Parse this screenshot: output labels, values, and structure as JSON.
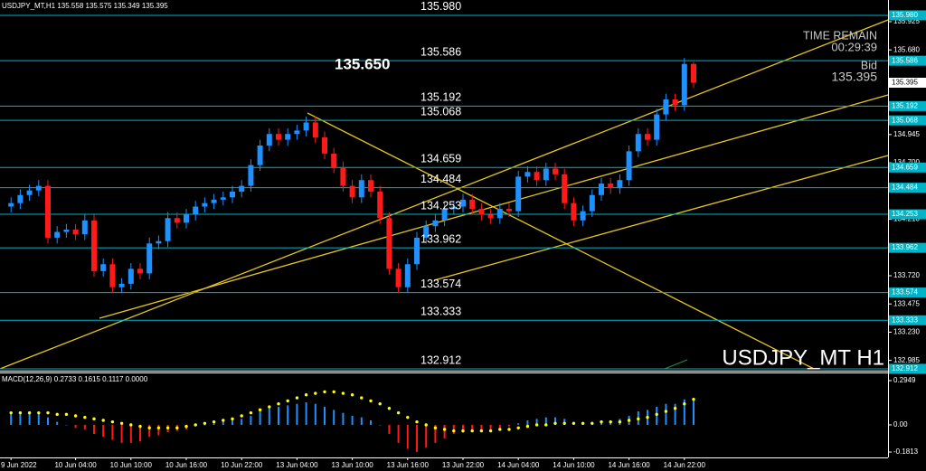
{
  "chart_data": {
    "type": "candlestick",
    "title": "USDJPY_MT,H1",
    "watermark": "USDJPY_MT H1",
    "up_color": "#1e90ff",
    "down_color": "#ff1a1a",
    "level_color": "#00b4c8",
    "categories": [
      "9 Jun 2022",
      null,
      null,
      null,
      null,
      null,
      null,
      "10 Jun 04:00",
      null,
      null,
      null,
      null,
      null,
      "10 Jun 10:00",
      null,
      null,
      null,
      null,
      null,
      "10 Jun 16:00",
      null,
      null,
      null,
      null,
      null,
      "10 Jun 22:00",
      null,
      null,
      null,
      null,
      null,
      "13 Jun 04:00",
      null,
      null,
      null,
      null,
      null,
      "13 Jun 10:00",
      null,
      null,
      null,
      null,
      null,
      "13 Jun 16:00",
      null,
      null,
      null,
      null,
      null,
      "13 Jun 22:00",
      null,
      null,
      null,
      null,
      null,
      "14 Jun 04:00",
      null,
      null,
      null,
      null,
      null,
      "14 Jun 10:00",
      null,
      null,
      null,
      null,
      null,
      "14 Jun 16:00",
      null,
      null,
      null,
      null,
      null,
      "14 Jun 22:00",
      null
    ],
    "open": [
      134.32,
      134.35,
      134.42,
      134.46,
      134.5,
      134.05,
      134.1,
      134.12,
      134.08,
      134.2,
      133.76,
      133.82,
      133.62,
      133.65,
      133.78,
      133.74,
      134.0,
      134.02,
      134.22,
      134.18,
      134.25,
      134.32,
      134.35,
      134.38,
      134.4,
      134.45,
      134.5,
      134.68,
      134.85,
      134.95,
      134.9,
      134.95,
      134.98,
      135.05,
      134.92,
      134.78,
      134.66,
      134.5,
      134.4,
      134.55,
      134.45,
      134.22,
      133.78,
      133.62,
      133.82,
      134.05,
      134.15,
      134.2,
      134.3,
      134.32,
      134.38,
      134.3,
      134.25,
      134.22,
      134.3,
      134.28,
      134.58,
      134.62,
      134.55,
      134.65,
      134.6,
      134.35,
      134.2,
      134.28,
      134.42,
      134.52,
      134.48,
      134.55,
      134.8,
      134.95,
      134.9,
      135.12,
      135.25,
      135.2,
      135.558
    ],
    "high": [
      134.4,
      134.47,
      134.51,
      134.55,
      134.55,
      134.15,
      134.17,
      134.17,
      134.25,
      134.25,
      133.87,
      133.87,
      133.7,
      133.83,
      133.83,
      134.05,
      134.07,
      134.27,
      134.27,
      134.3,
      134.37,
      134.4,
      134.43,
      134.45,
      134.5,
      134.55,
      134.73,
      134.9,
      135.0,
      135.0,
      135.0,
      135.03,
      135.1,
      135.1,
      134.97,
      134.83,
      134.71,
      134.55,
      134.6,
      134.6,
      134.5,
      134.27,
      133.83,
      133.87,
      134.1,
      134.2,
      134.25,
      134.35,
      134.37,
      134.43,
      134.43,
      134.35,
      134.3,
      134.35,
      134.35,
      134.63,
      134.67,
      134.67,
      134.7,
      134.7,
      134.65,
      134.4,
      134.33,
      134.47,
      134.57,
      134.57,
      134.6,
      134.85,
      135.0,
      135.0,
      135.17,
      135.3,
      135.3,
      135.61,
      135.575
    ],
    "low": [
      134.27,
      134.3,
      134.37,
      134.41,
      134.0,
      134.0,
      134.05,
      134.03,
      134.03,
      133.71,
      133.71,
      133.57,
      133.57,
      133.6,
      133.69,
      133.69,
      133.95,
      133.97,
      134.13,
      134.13,
      134.2,
      134.27,
      134.3,
      134.33,
      134.35,
      134.4,
      134.45,
      134.63,
      134.8,
      134.85,
      134.85,
      134.9,
      134.93,
      134.87,
      134.73,
      134.61,
      134.45,
      134.35,
      134.35,
      134.4,
      134.17,
      133.73,
      133.57,
      133.57,
      133.77,
      134.0,
      134.1,
      134.15,
      134.25,
      134.27,
      134.25,
      134.2,
      134.17,
      134.17,
      134.23,
      134.23,
      134.53,
      134.5,
      134.5,
      134.55,
      134.3,
      134.15,
      134.15,
      134.23,
      134.37,
      134.43,
      134.43,
      134.5,
      134.75,
      134.85,
      134.85,
      135.07,
      135.15,
      135.15,
      135.349
    ],
    "close": [
      134.35,
      134.42,
      134.46,
      134.5,
      134.05,
      134.1,
      134.12,
      134.08,
      134.2,
      133.76,
      133.82,
      133.62,
      133.65,
      133.78,
      133.74,
      134.0,
      134.02,
      134.22,
      134.18,
      134.25,
      134.32,
      134.35,
      134.38,
      134.4,
      134.45,
      134.5,
      134.68,
      134.85,
      134.95,
      134.9,
      134.95,
      134.98,
      135.05,
      134.92,
      134.78,
      134.66,
      134.5,
      134.4,
      134.55,
      134.45,
      134.22,
      133.78,
      133.62,
      133.82,
      134.05,
      134.15,
      134.2,
      134.3,
      134.32,
      134.38,
      134.3,
      134.25,
      134.22,
      134.3,
      134.28,
      134.58,
      134.62,
      134.55,
      134.65,
      134.6,
      134.35,
      134.2,
      134.28,
      134.42,
      134.52,
      134.48,
      134.55,
      134.8,
      134.95,
      134.9,
      135.12,
      135.25,
      135.2,
      135.558,
      135.395
    ],
    "ylim": [
      132.896,
      136.113
    ],
    "yticks": [
      135.925,
      {
        "value": 135.68,
        "label": "135.680"
      },
      134.945,
      {
        "value": 134.7,
        "label": "134.700"
      },
      {
        "value": 134.21,
        "label": "134.210"
      },
      {
        "value": 133.72,
        "label": "133.720"
      },
      133.475,
      {
        "value": 133.23,
        "label": "133.230"
      },
      132.985
    ],
    "levels": [
      {
        "value": 135.98,
        "label": "135.980"
      },
      135.586,
      135.192,
      135.068,
      134.659,
      134.484,
      134.253,
      133.962,
      133.574,
      133.333,
      132.912
    ],
    "annotation": "135.650",
    "time_remain_label": "TIME REMAIN",
    "time_remain": "00:29:39",
    "bid_label": "Bid",
    "bid": 135.395,
    "macd": {
      "title": "MACD(12,26,9) 0.2733 0.1615 0.1117 0.0000",
      "histogram": [
        0.08,
        0.09,
        0.09,
        0.08,
        0.05,
        0.02,
        0.0,
        -0.02,
        -0.03,
        -0.06,
        -0.08,
        -0.1,
        -0.12,
        -0.12,
        -0.11,
        -0.08,
        -0.07,
        -0.05,
        -0.04,
        -0.03,
        -0.01,
        0.0,
        0.01,
        0.02,
        0.03,
        0.04,
        0.06,
        0.09,
        0.11,
        0.12,
        0.13,
        0.14,
        0.15,
        0.14,
        0.12,
        0.1,
        0.08,
        0.06,
        0.05,
        0.03,
        0.0,
        -0.06,
        -0.12,
        -0.16,
        -0.18,
        -0.15,
        -0.12,
        -0.09,
        -0.06,
        -0.05,
        -0.04,
        -0.04,
        -0.03,
        -0.02,
        -0.01,
        0.01,
        0.03,
        0.04,
        0.05,
        0.05,
        0.04,
        0.02,
        0.01,
        0.02,
        0.03,
        0.03,
        0.04,
        0.06,
        0.09,
        0.1,
        0.12,
        0.14,
        0.14,
        0.17,
        0.16
      ],
      "signal": [
        0.08,
        0.08,
        0.08,
        0.08,
        0.08,
        0.07,
        0.07,
        0.06,
        0.05,
        0.04,
        0.03,
        0.02,
        0.01,
        0.0,
        -0.01,
        -0.02,
        -0.02,
        -0.02,
        -0.02,
        -0.01,
        0.0,
        0.01,
        0.02,
        0.03,
        0.04,
        0.06,
        0.08,
        0.1,
        0.12,
        0.14,
        0.16,
        0.18,
        0.2,
        0.21,
        0.22,
        0.22,
        0.21,
        0.2,
        0.18,
        0.16,
        0.14,
        0.11,
        0.08,
        0.05,
        0.02,
        0.0,
        -0.02,
        -0.03,
        -0.04,
        -0.04,
        -0.04,
        -0.04,
        -0.04,
        -0.03,
        -0.03,
        -0.02,
        -0.01,
        0.0,
        0.0,
        0.01,
        0.01,
        0.01,
        0.01,
        0.01,
        0.02,
        0.02,
        0.02,
        0.03,
        0.04,
        0.05,
        0.07,
        0.09,
        0.11,
        0.14,
        0.17
      ],
      "signal_color": "#ffff00",
      "ylim": [
        -0.211,
        0.343
      ],
      "yticks": [
        0.2949,
        {
          "value": 0,
          "label": "0.00"
        },
        -0.1813
      ]
    }
  }
}
